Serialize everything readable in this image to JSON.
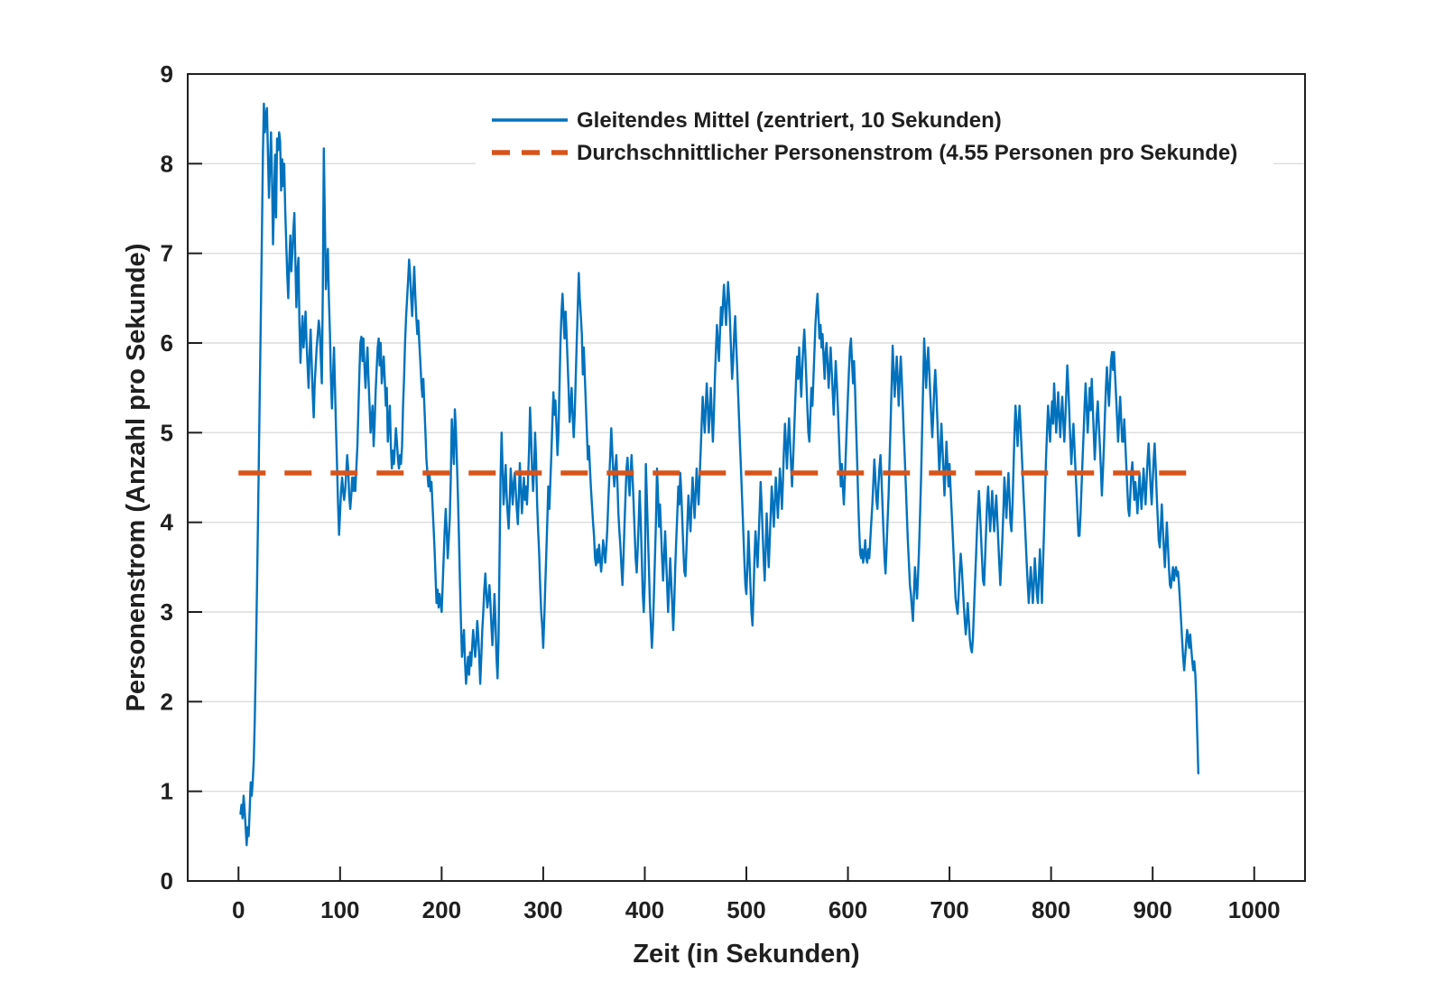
{
  "figure": {
    "background": "#ffffff"
  },
  "chart_data": {
    "type": "line",
    "title": "",
    "xlabel": "Zeit (in Sekunden)",
    "ylabel": "Personenstrom (Anzahl pro Sekunde)",
    "xlim": [
      -50,
      1050
    ],
    "ylim": [
      0,
      9
    ],
    "xticks": [
      0,
      100,
      200,
      300,
      400,
      500,
      600,
      700,
      800,
      900,
      1000
    ],
    "yticks": [
      0,
      1,
      2,
      3,
      4,
      5,
      6,
      7,
      8,
      9
    ],
    "grid": "horizontal-only",
    "grid_color": "#dcdcdc",
    "axis_color": "#1f1f1f",
    "legend_position": "north-inside",
    "mean_value": 4.55,
    "series": [
      {
        "name": "Gleitendes Mittel (zentriert, 10 Sekunden)",
        "type": "line",
        "style": "solid",
        "color": "#0072BD",
        "t_start": 2,
        "t_step": 1,
        "values": [
          0.75,
          0.85,
          0.7,
          0.95,
          0.8,
          0.6,
          0.4,
          0.6,
          0.5,
          0.8,
          1.1,
          0.95,
          1.1,
          1.35,
          1.8,
          2.4,
          3.1,
          3.9,
          4.7,
          5.5,
          6.3,
          7.2,
          8.1,
          8.67,
          8.35,
          8.55,
          8.62,
          8.1,
          7.62,
          8.0,
          8.35,
          7.85,
          7.1,
          7.6,
          8.1,
          7.4,
          8.28,
          8.15,
          8.35,
          8.25,
          7.7,
          8.05,
          7.75,
          8.0,
          7.5,
          7.1,
          6.75,
          6.5,
          6.9,
          7.2,
          6.8,
          7.0,
          7.25,
          7.45,
          6.9,
          6.4,
          6.8,
          6.95,
          6.2,
          5.78,
          6.1,
          6.3,
          5.95,
          6.1,
          6.35,
          6.0,
          5.75,
          5.5,
          5.9,
          6.15,
          5.8,
          5.45,
          5.17,
          5.55,
          5.75,
          5.95,
          6.1,
          6.25,
          6.15,
          5.85,
          5.55,
          6.6,
          8.17,
          7.4,
          6.6,
          6.85,
          7.05,
          6.5,
          6.1,
          5.6,
          5.27,
          5.6,
          5.95,
          5.5,
          5.05,
          4.65,
          4.2,
          3.86,
          4.1,
          4.35,
          4.5,
          4.35,
          4.25,
          4.35,
          4.55,
          4.75,
          4.6,
          4.3,
          4.15,
          4.3,
          4.5,
          4.35,
          4.5,
          4.35,
          4.6,
          4.85,
          5.25,
          5.65,
          6.0,
          6.07,
          5.8,
          6.05,
          5.75,
          5.5,
          5.75,
          5.95,
          5.6,
          5.3,
          5.0,
          5.15,
          5.3,
          4.85,
          5.1,
          5.45,
          5.7,
          5.95,
          6.05,
          5.75,
          6.0,
          5.55,
          5.7,
          5.85,
          5.6,
          5.3,
          5.5,
          4.9,
          5.1,
          5.3,
          4.85,
          4.6,
          4.8,
          4.65,
          4.85,
          5.05,
          4.9,
          4.7,
          4.6,
          4.75,
          4.65,
          4.85,
          5.3,
          5.6,
          6.0,
          6.3,
          6.5,
          6.7,
          6.93,
          6.75,
          6.5,
          6.3,
          6.6,
          6.85,
          6.55,
          6.3,
          6.1,
          6.25,
          6.0,
          5.8,
          5.55,
          5.4,
          5.6,
          5.3,
          5.0,
          4.7,
          4.55,
          4.4,
          4.55,
          4.35,
          4.45,
          4.2,
          3.95,
          3.7,
          3.4,
          3.1,
          3.25,
          3.05,
          3.2,
          3.1,
          3.0,
          3.3,
          3.6,
          3.9,
          4.15,
          3.9,
          3.6,
          3.8,
          4.05,
          4.5,
          5.15,
          4.9,
          4.65,
          5.26,
          5.05,
          4.7,
          4.3,
          3.85,
          3.35,
          2.9,
          2.5,
          2.65,
          2.8,
          2.45,
          2.2,
          2.35,
          2.5,
          2.3,
          2.55,
          2.4,
          2.6,
          2.8,
          2.65,
          2.5,
          2.65,
          2.9,
          2.75,
          2.5,
          2.2,
          2.5,
          2.8,
          3.0,
          3.25,
          3.43,
          3.2,
          3.05,
          3.15,
          3.3,
          3.1,
          2.85,
          2.63,
          2.9,
          3.2,
          2.9,
          2.5,
          2.26,
          2.7,
          3.6,
          4.5,
          5.0,
          4.6,
          4.2,
          4.4,
          4.64,
          4.3,
          4.1,
          3.93,
          4.25,
          4.6,
          4.4,
          4.2,
          4.45,
          4.55,
          4.35,
          4.15,
          3.98,
          4.3,
          4.66,
          4.4,
          4.1,
          4.3,
          4.5,
          4.25,
          4.4,
          4.2,
          4.45,
          4.8,
          5.28,
          5.0,
          4.6,
          4.35,
          4.6,
          5.0,
          4.7,
          4.2,
          3.9,
          3.66,
          3.3,
          3.0,
          2.84,
          2.6,
          2.9,
          3.3,
          3.65,
          4.0,
          4.4,
          4.15,
          4.45,
          4.75,
          5.1,
          5.45,
          5.2,
          5.36,
          5.1,
          4.75,
          5.0,
          5.5,
          6.0,
          6.35,
          6.55,
          6.3,
          6.05,
          6.35,
          6.1,
          5.8,
          5.5,
          5.12,
          5.3,
          5.5,
          5.2,
          4.95,
          5.2,
          5.6,
          6.0,
          6.4,
          6.78,
          6.5,
          6.3,
          6.1,
          5.65,
          5.95,
          5.6,
          5.3,
          5.0,
          4.7,
          4.85,
          4.6,
          4.38,
          4.2,
          4.0,
          3.85,
          3.6,
          3.52,
          3.7,
          3.55,
          3.75,
          3.6,
          3.45,
          3.6,
          3.8,
          3.7,
          3.55,
          3.7,
          3.9,
          4.2,
          4.5,
          4.75,
          5.05,
          4.8,
          4.55,
          4.4,
          4.6,
          4.75,
          4.45,
          4.1,
          3.9,
          3.74,
          3.5,
          3.3,
          3.6,
          3.95,
          4.3,
          4.6,
          4.72,
          4.5,
          4.3,
          4.55,
          4.75,
          4.5,
          4.2,
          3.9,
          3.6,
          3.44,
          3.7,
          4.0,
          4.35,
          4.0,
          3.6,
          3.2,
          3.0,
          3.35,
          4.65,
          4.3,
          3.9,
          3.5,
          3.1,
          2.85,
          2.6,
          2.85,
          3.2,
          3.6,
          4.0,
          4.6,
          4.3,
          3.95,
          4.2,
          3.9,
          3.6,
          3.35,
          3.6,
          3.9,
          3.6,
          3.3,
          3.0,
          3.3,
          3.6,
          3.35,
          3.1,
          2.8,
          3.1,
          3.5,
          3.8,
          4.1,
          4.4,
          4.2,
          4.55,
          4.3,
          4.0,
          3.7,
          3.45,
          3.4,
          3.7,
          4.0,
          4.3,
          4.1,
          3.9,
          4.2,
          4.5,
          4.3,
          4.05,
          4.3,
          4.6,
          4.4,
          4.2,
          4.5,
          4.8,
          5.1,
          5.4,
          5.2,
          5.0,
          5.3,
          5.55,
          5.3,
          5.0,
          5.25,
          5.5,
          5.2,
          4.9,
          5.2,
          5.6,
          5.9,
          6.2,
          6.0,
          5.8,
          6.1,
          6.4,
          6.2,
          6.45,
          6.65,
          6.4,
          6.2,
          6.45,
          6.68,
          6.5,
          6.2,
          5.9,
          5.6,
          5.8,
          6.1,
          6.3,
          6.0,
          5.7,
          5.4,
          5.1,
          4.8,
          4.5,
          4.2,
          3.9,
          3.6,
          3.3,
          3.2,
          3.5,
          3.9,
          3.6,
          3.3,
          3.0,
          2.85,
          3.2,
          3.6,
          3.9,
          3.7,
          3.5,
          3.8,
          4.1,
          4.45,
          4.2,
          3.9,
          3.6,
          3.35,
          3.7,
          4.1,
          3.8,
          3.5,
          3.8,
          4.1,
          4.4,
          4.2,
          3.95,
          4.2,
          4.5,
          4.3,
          4.05,
          4.3,
          4.6,
          4.4,
          4.15,
          4.45,
          4.8,
          5.1,
          4.85,
          4.6,
          4.9,
          5.16,
          4.9,
          4.65,
          4.4,
          4.7,
          5.0,
          5.3,
          5.6,
          5.85,
          5.6,
          5.95,
          5.7,
          5.4,
          5.7,
          5.95,
          6.15,
          5.9,
          5.6,
          5.3,
          5.0,
          4.9,
          5.2,
          5.5,
          5.3,
          5.6,
          5.9,
          6.2,
          6.4,
          6.55,
          6.3,
          6.05,
          6.2,
          5.95,
          6.1,
          5.85,
          5.6,
          5.9,
          6.0,
          5.75,
          5.5,
          5.75,
          5.95,
          5.7,
          5.45,
          5.2,
          5.5,
          5.8,
          5.55,
          5.3,
          5.0,
          4.7,
          4.4,
          4.65,
          4.4,
          4.2,
          4.5,
          4.8,
          5.1,
          5.4,
          5.7,
          5.95,
          6.05,
          5.8,
          5.55,
          5.8,
          5.5,
          5.1,
          4.7,
          4.3,
          3.95,
          3.65,
          3.6,
          3.7,
          3.55,
          3.65,
          3.8,
          3.6,
          3.55,
          3.7,
          3.6,
          3.8,
          4.0,
          4.2,
          4.45,
          4.7,
          4.5,
          4.25,
          4.15,
          4.4,
          4.6,
          4.75,
          4.5,
          4.2,
          3.9,
          3.6,
          3.43,
          3.7,
          4.0,
          4.3,
          4.7,
          5.1,
          5.5,
          5.97,
          5.7,
          5.4,
          5.6,
          5.85,
          5.6,
          5.3,
          5.6,
          5.85,
          5.6,
          5.3,
          5.0,
          4.7,
          4.4,
          4.1,
          3.8,
          3.55,
          3.3,
          3.2,
          3.05,
          2.9,
          3.2,
          3.5,
          3.3,
          3.15,
          3.4,
          3.7,
          4.1,
          4.5,
          5.0,
          5.5,
          6.05,
          5.8,
          5.5,
          5.75,
          5.95,
          5.7,
          5.45,
          5.2,
          4.95,
          5.2,
          5.5,
          5.7,
          5.45,
          5.15,
          4.85,
          4.55,
          4.8,
          5.1,
          4.85,
          4.6,
          4.3,
          4.6,
          4.9,
          4.65,
          4.4,
          4.65,
          4.4,
          4.15,
          3.9,
          3.65,
          3.4,
          3.15,
          3.05,
          2.98,
          3.2,
          3.45,
          3.65,
          3.5,
          3.3,
          3.1,
          2.9,
          2.75,
          2.9,
          3.1,
          2.9,
          2.7,
          2.6,
          2.55,
          2.7,
          3.0,
          3.3,
          3.6,
          3.9,
          4.15,
          4.35,
          4.1,
          3.85,
          3.6,
          3.35,
          3.3,
          3.6,
          3.9,
          4.2,
          4.4,
          4.15,
          3.9,
          4.1,
          4.35,
          4.1,
          3.9,
          4.1,
          4.3,
          4.05,
          3.8,
          3.55,
          3.3,
          3.55,
          3.8,
          4.1,
          4.5,
          4.3,
          4.05,
          4.3,
          4.55,
          4.3,
          4.0,
          3.9,
          4.2,
          4.6,
          5.0,
          5.3,
          5.1,
          4.85,
          5.1,
          5.3,
          5.05,
          4.8,
          4.55,
          4.3,
          4.05,
          3.8,
          3.55,
          3.3,
          3.1,
          3.3,
          3.5,
          3.3,
          3.1,
          3.3,
          3.6,
          3.4,
          3.2,
          3.1,
          3.4,
          3.7,
          3.4,
          3.1,
          3.5,
          3.9,
          4.3,
          4.7,
          5.0,
          5.3,
          5.1,
          4.9,
          5.15,
          5.35,
          5.1,
          5.55,
          5.3,
          5.0,
          5.2,
          5.45,
          5.2,
          4.95,
          5.2,
          5.4,
          5.15,
          4.9,
          5.15,
          5.45,
          5.75,
          5.5,
          5.2,
          4.9,
          4.65,
          4.9,
          5.1,
          4.85,
          4.6,
          4.35,
          4.1,
          3.85,
          3.85,
          4.1,
          4.4,
          4.7,
          5.0,
          5.3,
          5.55,
          5.3,
          5.0,
          5.25,
          5.5,
          5.25,
          5.6,
          5.3,
          5.0,
          4.7,
          4.95,
          5.2,
          5.35,
          5.1,
          4.85,
          4.6,
          4.3,
          4.55,
          4.85,
          5.2,
          5.5,
          5.73,
          5.5,
          5.3,
          5.55,
          5.8,
          5.9,
          5.7,
          5.9,
          5.65,
          5.4,
          5.15,
          4.9,
          5.15,
          5.4,
          5.15,
          4.9,
          4.9,
          5.15,
          4.9,
          4.65,
          4.4,
          4.15,
          4.07,
          4.3,
          4.55,
          4.67,
          4.45,
          4.25,
          4.45,
          4.3,
          4.1,
          4.3,
          4.55,
          4.35,
          4.15,
          4.35,
          4.6,
          4.4,
          4.2,
          4.45,
          4.7,
          4.88,
          4.65,
          4.4,
          4.2,
          4.45,
          4.7,
          4.88,
          4.6,
          4.3,
          4.05,
          3.8,
          3.72,
          3.95,
          4.2,
          3.95,
          3.7,
          3.5,
          3.75,
          4.0,
          3.75,
          3.5,
          3.3,
          3.27,
          3.4,
          3.5,
          3.35,
          3.45,
          3.5,
          3.4,
          3.45,
          3.3,
          3.1,
          2.9,
          2.7,
          2.5,
          2.35,
          2.5,
          2.65,
          2.8,
          2.7,
          2.6,
          2.75,
          2.6,
          2.45,
          2.35,
          2.45,
          2.3,
          2.0,
          1.6,
          1.2
        ]
      },
      {
        "name": "Durchschnittlicher Personenstrom (4.55 Personen pro Sekunde)",
        "type": "hline",
        "style": "dashed",
        "color": "#D95319",
        "value": 4.55,
        "x_range": [
          0,
          946
        ]
      }
    ]
  }
}
